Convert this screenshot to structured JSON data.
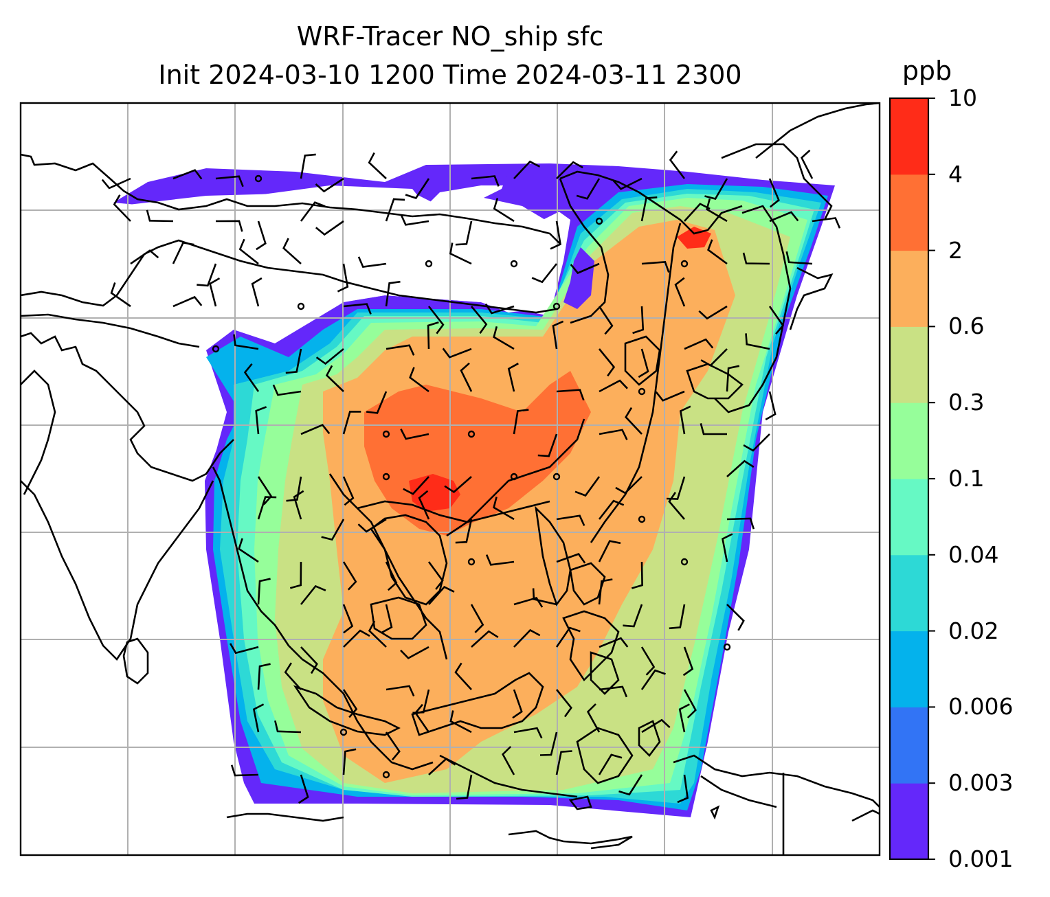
{
  "title": {
    "line1": "WRF-Tracer NO_ship sfc",
    "line2": "Init 2024-03-10 1200 Time 2024-03-11 2300"
  },
  "colorbar": {
    "unit": "ppb",
    "levels": [
      "0.001",
      "0.003",
      "0.006",
      "0.02",
      "0.04",
      "0.1",
      "0.3",
      "0.6",
      "2",
      "4",
      "10"
    ],
    "colors": [
      "#6428fa",
      "#3274f5",
      "#04b2ec",
      "#2dd9d6",
      "#66f9c4",
      "#96fe9a",
      "#c9e184",
      "#fcaf5c",
      "#ff7034",
      "#ff2c18"
    ]
  },
  "map": {
    "colors": {
      "coastline": "#000000",
      "gridline": "#b0b0b0",
      "ocean": "#ffffff",
      "wind_barb": "#000000"
    }
  }
}
